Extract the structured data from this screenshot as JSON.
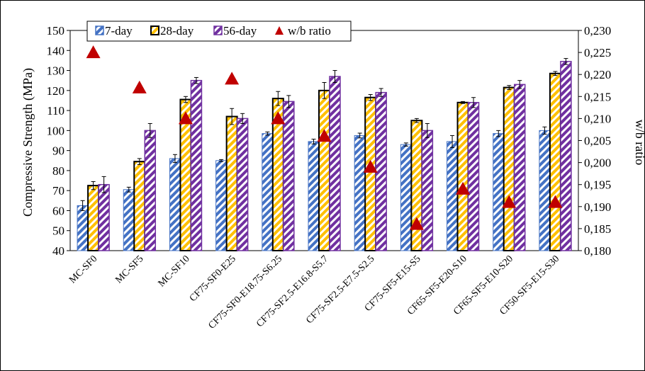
{
  "chart_data": {
    "type": "bar",
    "title": "",
    "categories": [
      "MC-SF0",
      "MC-SF5",
      "MC-SF10",
      "CF75-SF0-E25",
      "CF75-SF0-E18.75-S6.25",
      "CF75-SF2.5-E16.8-S5.7",
      "CF75-SF2.5-E7.5-S2.5",
      "CF75-SF5-E15-S5",
      "CF65-SF5-E20-S10",
      "CF65-SF5-E10-S20",
      "CF50-SF5-E15-S30"
    ],
    "ylabel": "Compressive Strength (MPa)",
    "y2label": "w/b ratio",
    "ylim": [
      40,
      150
    ],
    "y2lim": [
      0.18,
      0.23
    ],
    "yticks": [
      "40",
      "50",
      "60",
      "70",
      "80",
      "90",
      "100",
      "110",
      "120",
      "130",
      "140",
      "150"
    ],
    "y2ticks": [
      "0,180",
      "0,185",
      "0,190",
      "0,195",
      "0,200",
      "0,205",
      "0,210",
      "0,215",
      "0,220",
      "0,225",
      "0,230"
    ],
    "legend_position": "top-left",
    "series": [
      {
        "name": "7-day",
        "color": "#4472C4",
        "pattern": "diagonal-stripes",
        "values": [
          62.5,
          70.5,
          86,
          85,
          98.5,
          94.5,
          97.5,
          93,
          94.5,
          98.5,
          100
        ],
        "errors": [
          2.5,
          1.2,
          2,
          0.5,
          0.8,
          1.2,
          1.2,
          0.8,
          3,
          1.5,
          1.8
        ]
      },
      {
        "name": "28-day",
        "color": "#FFC000",
        "pattern": "diagonal-stripes",
        "values": [
          72.5,
          84.5,
          115.5,
          107,
          116,
          120,
          116.5,
          105,
          114,
          121.5,
          128.5
        ],
        "errors": [
          2,
          1.5,
          1.5,
          4,
          3.5,
          4,
          1.5,
          1,
          0.5,
          1,
          1
        ]
      },
      {
        "name": "56-day",
        "color": "#7030A0",
        "pattern": "diagonal-stripes",
        "values": [
          73,
          100,
          125,
          106,
          114.5,
          127,
          119,
          100,
          114,
          123,
          134.5
        ],
        "errors": [
          4,
          3.5,
          1.5,
          2.5,
          3,
          3,
          2,
          3.5,
          2.5,
          2,
          1.5
        ]
      },
      {
        "name": "w/b ratio",
        "color": "#C00000",
        "marker": "triangle",
        "axis": "secondary",
        "values": [
          0.225,
          0.217,
          0.21,
          0.219,
          0.21,
          0.206,
          0.199,
          0.186,
          0.194,
          0.191,
          0.191
        ]
      }
    ]
  }
}
